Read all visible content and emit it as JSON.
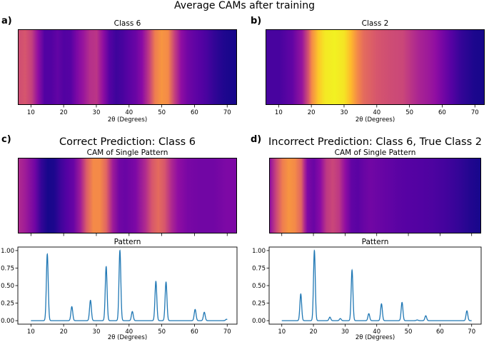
{
  "figure": {
    "suptitle": "Average CAMs after training"
  },
  "panels": {
    "a": {
      "label": "a)",
      "title": "Class 6",
      "xlabel": "2θ (Degrees)"
    },
    "b": {
      "label": "b)",
      "title": "Class 2",
      "xlabel": "2θ (Degrees)"
    },
    "c": {
      "label": "c)",
      "heading": "Correct Prediction: Class 6",
      "cam_title": "CAM of Single Pattern",
      "pattern_title": "Pattern",
      "xlabel": "2θ (Degrees)"
    },
    "d": {
      "label": "d)",
      "heading": "Incorrect Prediction: Class 6, True Class 2",
      "cam_title": "CAM of Single Pattern",
      "pattern_title": "Pattern",
      "xlabel": "2θ (Degrees)"
    }
  },
  "colors": {
    "line": "#1f77b4",
    "colormap": "plasma",
    "plasma_stops": [
      "#0d0887",
      "#5302a3",
      "#8b0aa5",
      "#b83289",
      "#db5c68",
      "#f48849",
      "#febd2a",
      "#f0f921"
    ]
  },
  "chart_data": [
    {
      "id": "a",
      "type": "heatmap",
      "title": "Class 6",
      "xlabel": "2θ (Degrees)",
      "xlim": [
        6,
        73
      ],
      "xticks": [
        10,
        20,
        30,
        40,
        50,
        60,
        70
      ],
      "cam": [
        [
          6,
          0.52
        ],
        [
          8,
          0.55
        ],
        [
          10,
          0.48
        ],
        [
          12,
          0.3
        ],
        [
          14,
          0.14
        ],
        [
          16,
          0.14
        ],
        [
          18,
          0.18
        ],
        [
          20,
          0.14
        ],
        [
          22,
          0.15
        ],
        [
          24,
          0.25
        ],
        [
          26,
          0.33
        ],
        [
          28,
          0.42
        ],
        [
          30,
          0.44
        ],
        [
          32,
          0.3
        ],
        [
          34,
          0.15
        ],
        [
          36,
          0.1
        ],
        [
          38,
          0.12
        ],
        [
          40,
          0.16
        ],
        [
          42,
          0.2
        ],
        [
          44,
          0.28
        ],
        [
          46,
          0.45
        ],
        [
          48,
          0.68
        ],
        [
          50,
          0.75
        ],
        [
          52,
          0.72
        ],
        [
          54,
          0.48
        ],
        [
          56,
          0.3
        ],
        [
          58,
          0.22
        ],
        [
          60,
          0.18
        ],
        [
          62,
          0.15
        ],
        [
          64,
          0.12
        ],
        [
          66,
          0.08
        ],
        [
          68,
          0.05
        ],
        [
          70,
          0.03
        ],
        [
          73,
          0.02
        ]
      ]
    },
    {
      "id": "b",
      "type": "heatmap",
      "title": "Class 2",
      "xlabel": "2θ (Degrees)",
      "xlim": [
        6,
        73
      ],
      "xticks": [
        10,
        20,
        30,
        40,
        50,
        60,
        70
      ],
      "cam": [
        [
          6,
          0.12
        ],
        [
          10,
          0.12
        ],
        [
          14,
          0.18
        ],
        [
          17,
          0.32
        ],
        [
          19,
          0.55
        ],
        [
          20,
          0.72
        ],
        [
          22,
          0.88
        ],
        [
          24,
          0.96
        ],
        [
          27,
          0.98
        ],
        [
          30,
          0.95
        ],
        [
          32,
          0.85
        ],
        [
          34,
          0.72
        ],
        [
          36,
          0.62
        ],
        [
          40,
          0.55
        ],
        [
          44,
          0.52
        ],
        [
          48,
          0.5
        ],
        [
          50,
          0.45
        ],
        [
          53,
          0.38
        ],
        [
          56,
          0.34
        ],
        [
          58,
          0.3
        ],
        [
          60,
          0.24
        ],
        [
          63,
          0.15
        ],
        [
          66,
          0.08
        ],
        [
          70,
          0.03
        ],
        [
          73,
          0.02
        ]
      ]
    },
    {
      "id": "c_cam",
      "type": "heatmap",
      "title": "CAM of Single Pattern",
      "xlim": [
        6,
        73
      ],
      "cam": [
        [
          6,
          0.4
        ],
        [
          8,
          0.35
        ],
        [
          11,
          0.22
        ],
        [
          13,
          0.08
        ],
        [
          15,
          0.02
        ],
        [
          17,
          0.03
        ],
        [
          19,
          0.1
        ],
        [
          21,
          0.15
        ],
        [
          23,
          0.2
        ],
        [
          25,
          0.35
        ],
        [
          27,
          0.58
        ],
        [
          29,
          0.72
        ],
        [
          31,
          0.72
        ],
        [
          33,
          0.6
        ],
        [
          35,
          0.35
        ],
        [
          37,
          0.22
        ],
        [
          39,
          0.2
        ],
        [
          42,
          0.25
        ],
        [
          45,
          0.4
        ],
        [
          47,
          0.55
        ],
        [
          49,
          0.62
        ],
        [
          51,
          0.55
        ],
        [
          53,
          0.4
        ],
        [
          55,
          0.3
        ],
        [
          58,
          0.24
        ],
        [
          62,
          0.22
        ],
        [
          66,
          0.22
        ],
        [
          70,
          0.25
        ],
        [
          73,
          0.25
        ]
      ]
    },
    {
      "id": "c_pattern",
      "type": "line",
      "title": "Pattern",
      "xlabel": "2θ (Degrees)",
      "xlim": [
        6,
        73
      ],
      "ylim": [
        -0.05,
        1.05
      ],
      "xticks": [
        10,
        20,
        30,
        40,
        50,
        60,
        70
      ],
      "yticks": [
        0.0,
        0.25,
        0.5,
        0.75,
        1.0
      ],
      "ytick_labels": [
        "0.00",
        "0.25",
        "0.50",
        "0.75",
        "1.00"
      ],
      "x_range": [
        10,
        70
      ],
      "peaks": [
        [
          15.0,
          0.95
        ],
        [
          22.5,
          0.2
        ],
        [
          28.2,
          0.29
        ],
        [
          33.0,
          0.77
        ],
        [
          37.2,
          1.0
        ],
        [
          41.0,
          0.13
        ],
        [
          48.2,
          0.56
        ],
        [
          51.3,
          0.55
        ],
        [
          60.2,
          0.16
        ],
        [
          63.0,
          0.12
        ],
        [
          69.8,
          0.02
        ]
      ]
    },
    {
      "id": "d_cam",
      "type": "heatmap",
      "title": "CAM of Single Pattern",
      "xlim": [
        6,
        73
      ],
      "cam": [
        [
          6,
          0.3
        ],
        [
          8,
          0.5
        ],
        [
          10,
          0.68
        ],
        [
          12,
          0.75
        ],
        [
          14,
          0.72
        ],
        [
          16,
          0.6
        ],
        [
          17,
          0.4
        ],
        [
          18,
          0.25
        ],
        [
          20,
          0.2
        ],
        [
          22,
          0.28
        ],
        [
          24,
          0.45
        ],
        [
          26,
          0.5
        ],
        [
          28,
          0.45
        ],
        [
          30,
          0.3
        ],
        [
          32,
          0.18
        ],
        [
          34,
          0.16
        ],
        [
          36,
          0.2
        ],
        [
          38,
          0.22
        ],
        [
          41,
          0.2
        ],
        [
          44,
          0.18
        ],
        [
          47,
          0.16
        ],
        [
          50,
          0.15
        ],
        [
          54,
          0.14
        ],
        [
          58,
          0.13
        ],
        [
          62,
          0.11
        ],
        [
          66,
          0.08
        ],
        [
          70,
          0.04
        ],
        [
          73,
          0.02
        ]
      ]
    },
    {
      "id": "d_pattern",
      "type": "line",
      "title": "Pattern",
      "xlabel": "2θ (Degrees)",
      "xlim": [
        6,
        73
      ],
      "ylim": [
        -0.05,
        1.05
      ],
      "xticks": [
        10,
        20,
        30,
        40,
        50,
        60,
        70
      ],
      "yticks": [
        0.0,
        0.25,
        0.5,
        0.75,
        1.0
      ],
      "ytick_labels": [
        "0.00",
        "0.25",
        "0.50",
        "0.75",
        "1.00"
      ],
      "x_range": [
        10,
        70
      ],
      "peaks": [
        [
          16.0,
          0.38
        ],
        [
          20.3,
          1.0
        ],
        [
          25.2,
          0.05
        ],
        [
          28.5,
          0.03
        ],
        [
          32.2,
          0.72
        ],
        [
          37.5,
          0.1
        ],
        [
          41.5,
          0.24
        ],
        [
          48.0,
          0.26
        ],
        [
          52.8,
          0.01
        ],
        [
          55.5,
          0.07
        ],
        [
          68.5,
          0.14
        ]
      ]
    }
  ]
}
